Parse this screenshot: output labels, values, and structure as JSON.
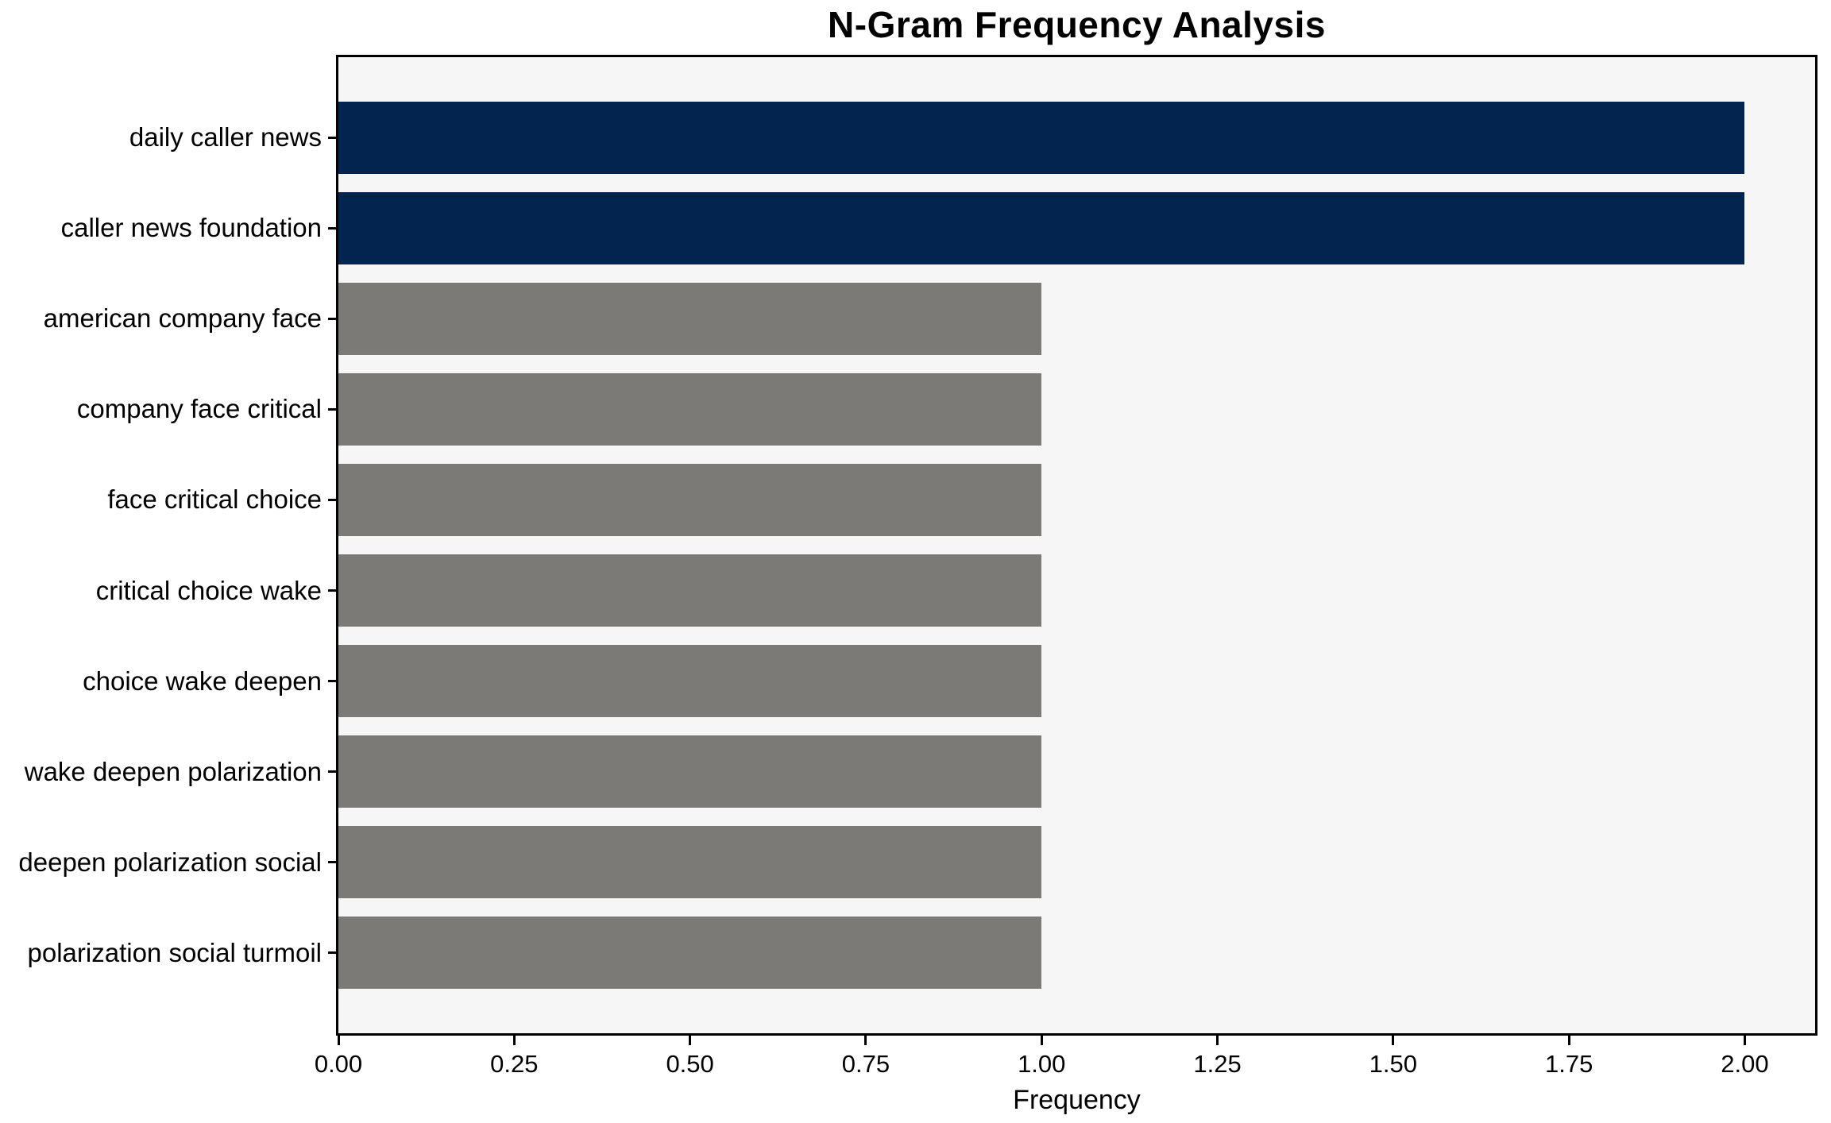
{
  "chart": {
    "title": "N-Gram Frequency Analysis",
    "xlabel": "Frequency"
  },
  "chart_data": {
    "type": "bar",
    "orientation": "horizontal",
    "title": "N-Gram Frequency Analysis",
    "xlabel": "Frequency",
    "ylabel": "",
    "categories": [
      "daily caller news",
      "caller news foundation",
      "american company face",
      "company face critical",
      "face critical choice",
      "critical choice wake",
      "choice wake deepen",
      "wake deepen polarization",
      "deepen polarization social",
      "polarization social turmoil"
    ],
    "values": [
      2,
      2,
      1,
      1,
      1,
      1,
      1,
      1,
      1,
      1
    ],
    "colors": [
      "#02244e",
      "#02244e",
      "#7b7a76",
      "#7b7a76",
      "#7b7a76",
      "#7b7a76",
      "#7b7a76",
      "#7b7a76",
      "#7b7a76",
      "#7b7a76"
    ],
    "highlight_color": "#02244e",
    "default_bar_color": "#7b7a76",
    "xlim": [
      0,
      2.1
    ],
    "xticks": [
      0,
      0.25,
      0.5,
      0.75,
      1.0,
      1.25,
      1.5,
      1.75,
      2.0
    ],
    "xticklabels": [
      "0.00",
      "0.25",
      "0.50",
      "0.75",
      "1.00",
      "1.25",
      "1.50",
      "1.75",
      "2.00"
    ],
    "plot_background": "#f7f6f6",
    "figure_background": "#ffffff",
    "grid": false,
    "legend_position": "none"
  }
}
